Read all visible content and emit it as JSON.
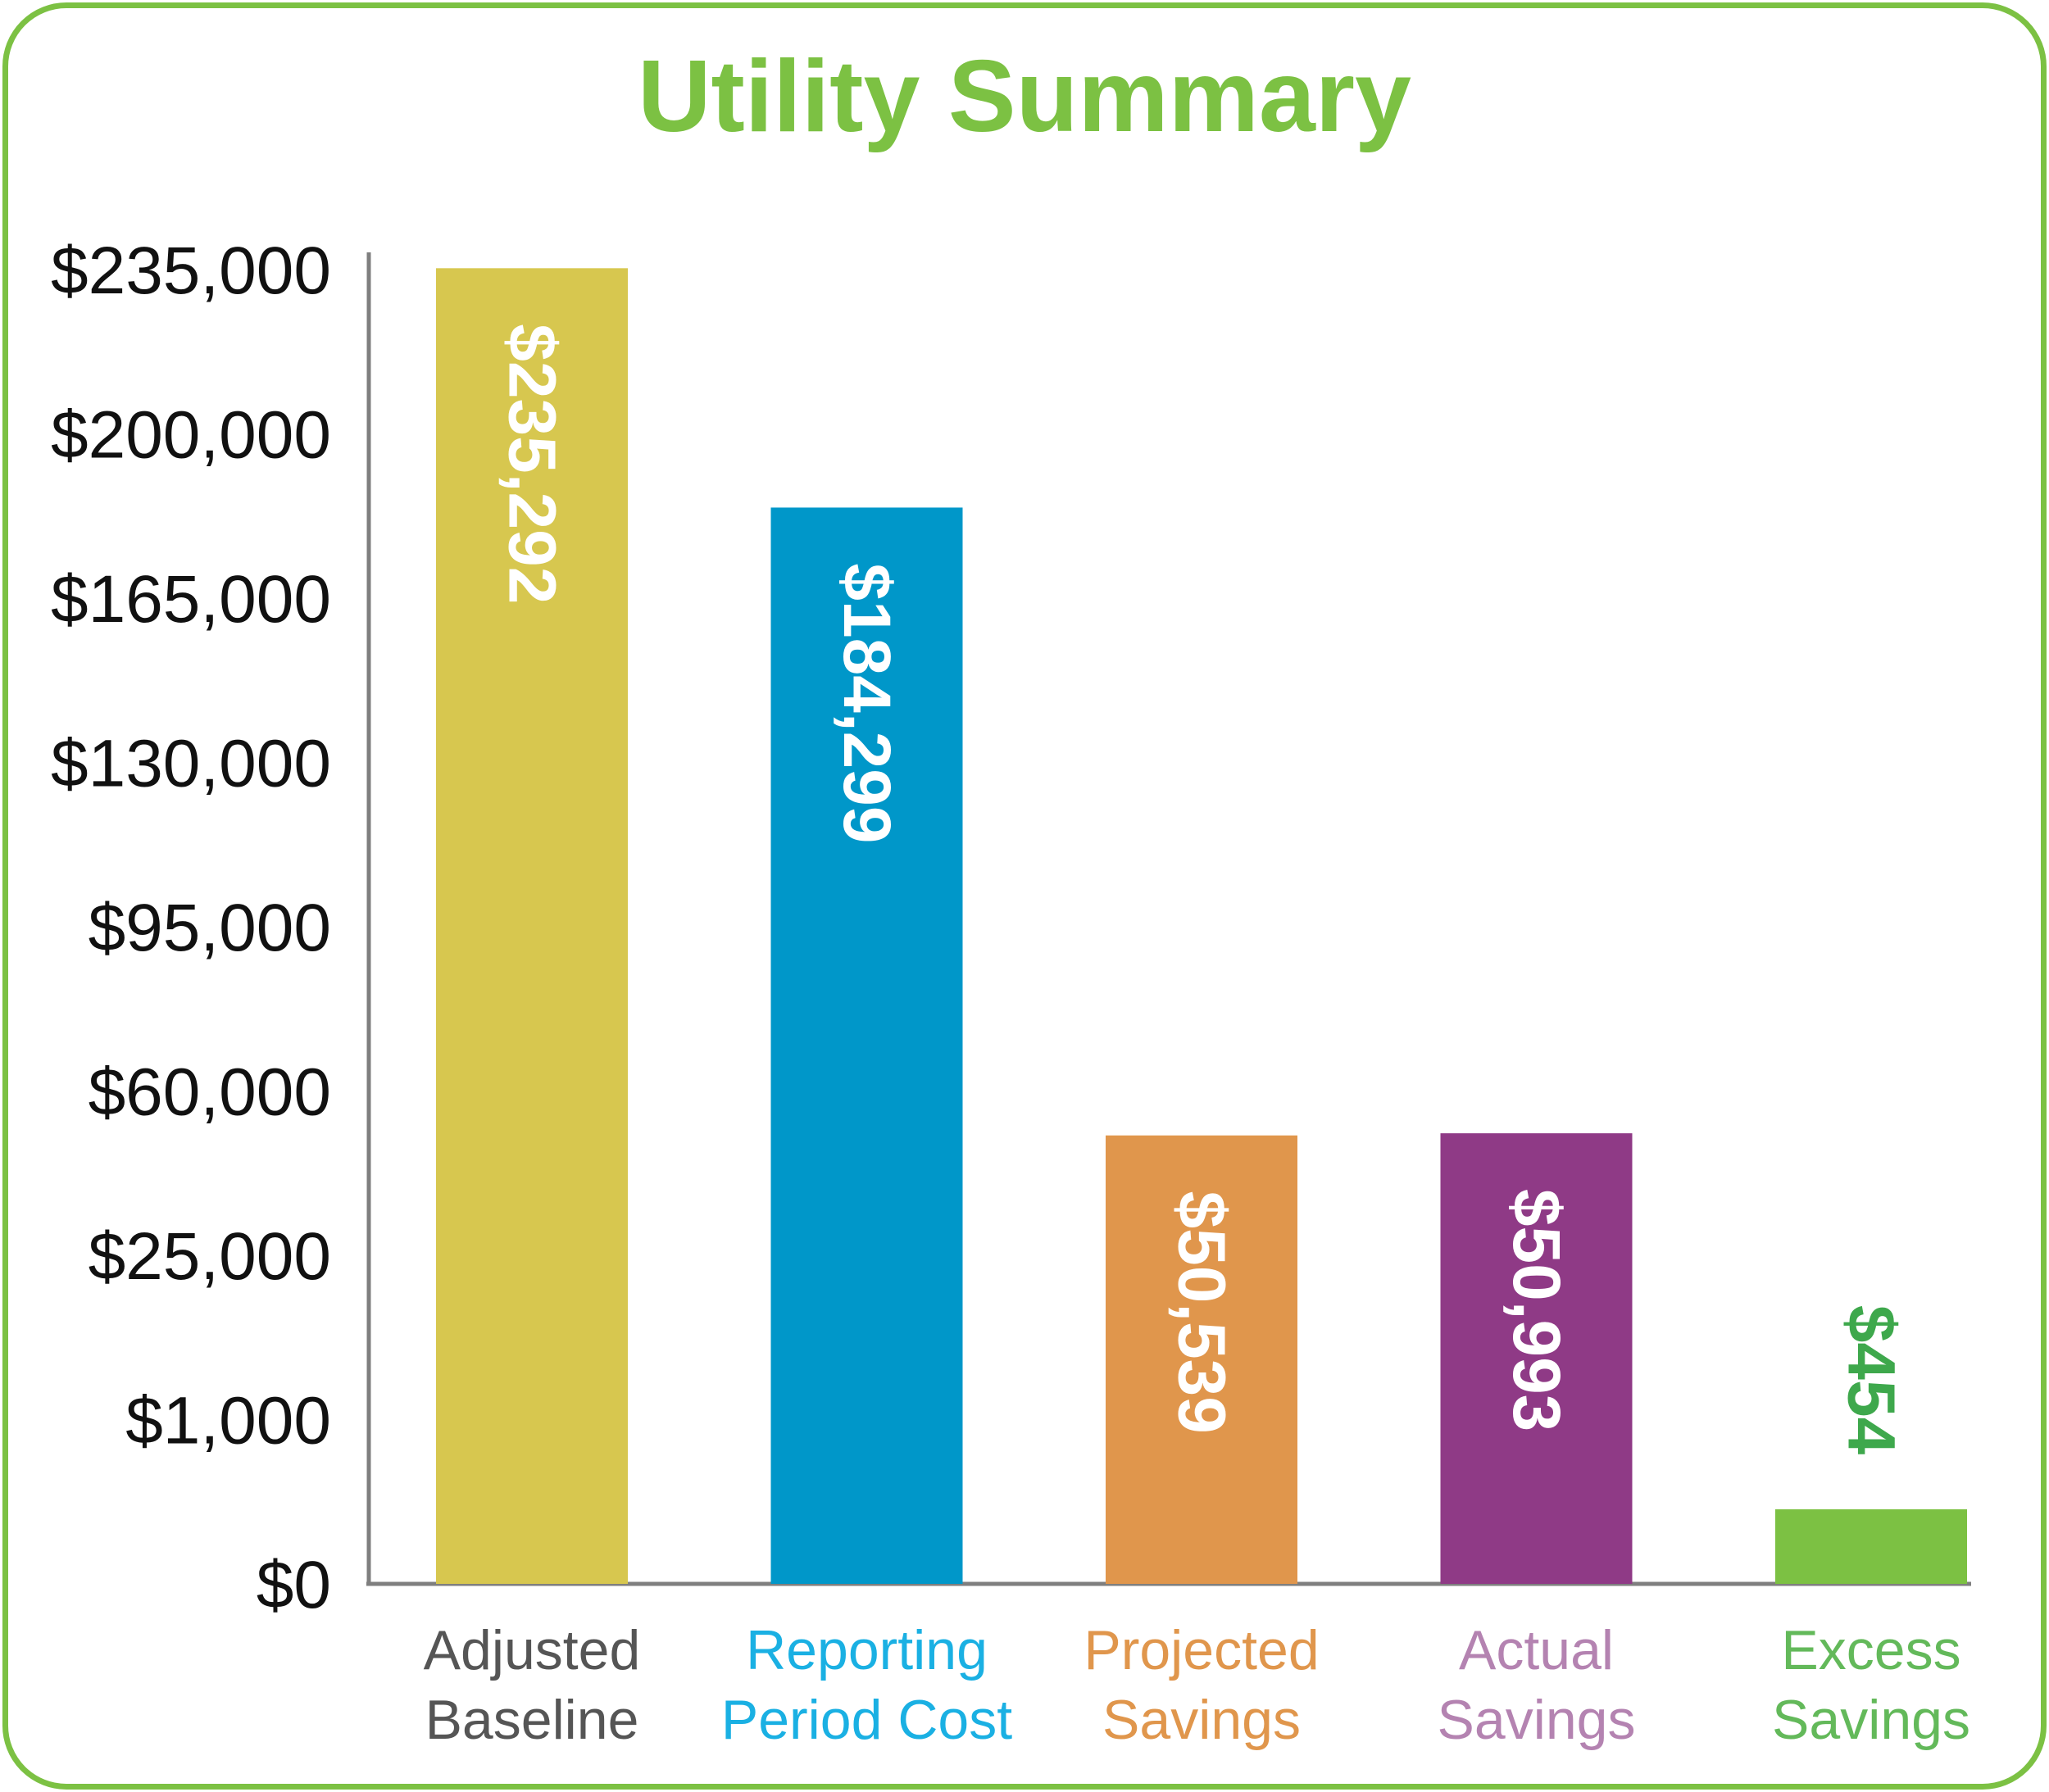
{
  "chart_data": {
    "type": "bar",
    "title": "Utility Summary",
    "title_color": "#7cc143",
    "border_color": "#7cc143",
    "axis_color": "#7f7f7f",
    "xlabel": "",
    "ylabel": "",
    "y_ticks": [
      "$0",
      "$1,000",
      "$25,000",
      "$60,000",
      "$95,000",
      "$130,000",
      "$165,000",
      "$200,000",
      "$235,000"
    ],
    "y_scale": "non-linear (ticks evenly spaced)",
    "ylim": [
      0,
      235000
    ],
    "grid": false,
    "legend": "none",
    "categories": [
      {
        "line1": "Adjusted",
        "line2": "Baseline",
        "value": 235292,
        "label": "$235,292",
        "bar_color": "#d7c74f",
        "text_color": "#555555",
        "value_color": "#ffffff"
      },
      {
        "line1": "Reporting",
        "line2": "Period Cost",
        "value": 184299,
        "label": "$184,299",
        "bar_color": "#0097c9",
        "text_color": "#1ab0e3",
        "value_color": "#ffffff"
      },
      {
        "line1": "Projected",
        "line2": "Savings",
        "value": 50539,
        "label": "$50,539",
        "bar_color": "#e0964c",
        "text_color": "#e0964c",
        "value_color": "#ffffff"
      },
      {
        "line1": "Actual",
        "line2": "Savings",
        "value": 50993,
        "label": "$50,993",
        "bar_color": "#8f3a86",
        "text_color": "#b483b1",
        "value_color": "#ffffff"
      },
      {
        "line1": "Excess",
        "line2": "Savings",
        "value": 454,
        "label": "$454",
        "bar_color": "#7cc143",
        "text_color": "#63b95a",
        "value_color": "#3ea84c"
      }
    ]
  }
}
